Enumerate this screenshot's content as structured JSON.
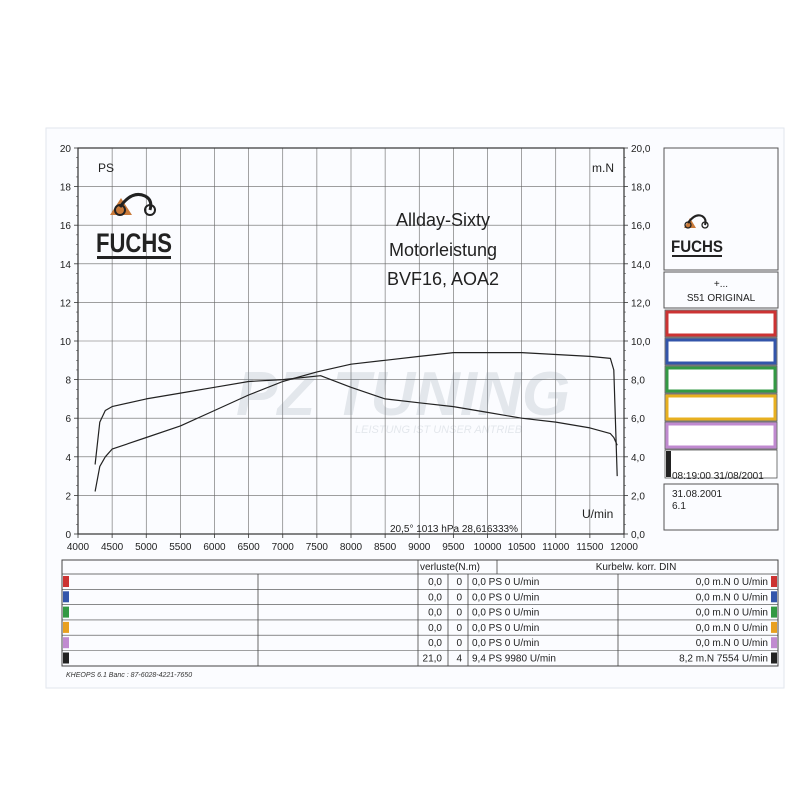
{
  "chart_data": {
    "type": "line",
    "title": [
      "Allday-Sixty",
      "Motorleistung",
      "BVF16, AOA2"
    ],
    "left_unit": "PS",
    "right_unit": "m.N",
    "x_unit": "U/min",
    "xlim": [
      4000,
      12000
    ],
    "ylim_left": [
      0,
      20
    ],
    "ylim_right": [
      0,
      20
    ],
    "x_ticks": [
      "4000",
      "4500",
      "5000",
      "5500",
      "6000",
      "6500",
      "7000",
      "7500",
      "8000",
      "8500",
      "9000",
      "9500",
      "10000",
      "10500",
      "11000",
      "11500",
      "12000"
    ],
    "y_ticks_left": [
      "0",
      "2",
      "4",
      "6",
      "8",
      "10",
      "12",
      "14",
      "16",
      "18",
      "20"
    ],
    "y_ticks_right": [
      "0,0",
      "2,0",
      "4,0",
      "6,0",
      "8,0",
      "10,0",
      "12,0",
      "14,0",
      "16,0",
      "18,0",
      "20,0"
    ],
    "grid": true,
    "series": [
      {
        "axis": "left",
        "color": "#222222",
        "x": [
          4250,
          4320,
          4400,
          4500,
          5000,
          5500,
          6000,
          6500,
          7000,
          7500,
          8000,
          8500,
          9000,
          9500,
          9980,
          10500,
          11000,
          11500,
          11800,
          11850,
          11900
        ],
        "values": [
          2.2,
          3.5,
          4.0,
          4.4,
          5.0,
          5.6,
          6.4,
          7.2,
          7.9,
          8.4,
          8.8,
          9.0,
          9.2,
          9.4,
          9.4,
          9.4,
          9.3,
          9.2,
          9.1,
          8.5,
          3.0
        ]
      },
      {
        "axis": "right",
        "color": "#222222",
        "x": [
          4250,
          4320,
          4400,
          4500,
          5000,
          5500,
          6000,
          6500,
          7000,
          7554,
          8000,
          8500,
          9000,
          9500,
          10000,
          10500,
          11000,
          11500,
          11800,
          11850,
          11900
        ],
        "values": [
          3.6,
          5.8,
          6.4,
          6.6,
          7.0,
          7.3,
          7.6,
          7.9,
          8.0,
          8.2,
          7.6,
          7.0,
          6.8,
          6.6,
          6.3,
          6.0,
          5.8,
          5.5,
          5.2,
          5.0,
          4.6
        ]
      }
    ]
  },
  "brand": {
    "name": "FUCHS",
    "watermark": "PZ TUNING",
    "watermark_sub": "LEISTUNG IST UNSER ANTRIEB"
  },
  "conditions": "20,5°  1013 hPa  28,616333%",
  "side_panel": {
    "title_line": "+...",
    "subtitle": "S51 ORIGINAL",
    "swatches": [
      "#cc3333",
      "#3355aa",
      "#339944",
      "#e8b020",
      "#c08ad0",
      "#222222"
    ],
    "timestamp": "08:19:00  31/08/2001",
    "date": "31.08.2001",
    "version": "6.1"
  },
  "table": {
    "header_loss": "verluste(N.m)",
    "header_right": "Kurbelw. korr. DIN",
    "rows": [
      {
        "color": "#cc3333",
        "a": "0,0",
        "b": "0",
        "ps": "0,0 PS 0 U/min",
        "nm": "0,0 m.N 0 U/min"
      },
      {
        "color": "#3355aa",
        "a": "0,0",
        "b": "0",
        "ps": "0,0 PS 0 U/min",
        "nm": "0,0 m.N 0 U/min"
      },
      {
        "color": "#339944",
        "a": "0,0",
        "b": "0",
        "ps": "0,0 PS 0 U/min",
        "nm": "0,0 m.N 0 U/min"
      },
      {
        "color": "#e8a020",
        "a": "0,0",
        "b": "0",
        "ps": "0,0 PS 0 U/min",
        "nm": "0,0 m.N 0 U/min"
      },
      {
        "color": "#c08ad0",
        "a": "0,0",
        "b": "0",
        "ps": "0,0 PS 0 U/min",
        "nm": "0,0 m.N 0 U/min"
      },
      {
        "color": "#222222",
        "a": "21,0",
        "b": "4",
        "ps": "9,4 PS 9980 U/min",
        "nm": "8,2 m.N 7554 U/min"
      }
    ]
  },
  "footer": "KHEOPS 6.1  Banc : 87-6028-4221-7650"
}
